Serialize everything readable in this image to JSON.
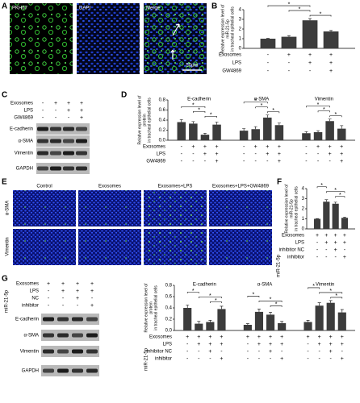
{
  "panel_a": {
    "label": "A",
    "images": [
      "PKH67",
      "DAPI",
      "Merge"
    ],
    "scale_bar": "50μm"
  },
  "panel_c": {
    "label": "C",
    "conditions": [
      {
        "name": "Exosomes",
        "marks": [
          "-",
          "+",
          "+",
          "+"
        ]
      },
      {
        "name": "LPS",
        "marks": [
          "-",
          "-",
          "+",
          "+"
        ]
      },
      {
        "name": "GW4869",
        "marks": [
          "-",
          "-",
          "-",
          "+"
        ]
      }
    ],
    "bands": [
      "E-cadherin",
      "α-SMA",
      "Vimentin",
      "GAPDH"
    ]
  },
  "panel_e": {
    "label": "E",
    "columns": [
      "Control",
      "Exosomes",
      "Exosomes+LPS",
      "Exosomes+LPS+GW4869"
    ],
    "rows": [
      "α-SMA",
      "Vimentin"
    ]
  },
  "panel_g": {
    "label": "G",
    "conditions": [
      {
        "name": "Exosomes",
        "marks": [
          "+",
          "+",
          "+",
          "+"
        ]
      },
      {
        "name": "LPS",
        "marks": [
          "-",
          "+",
          "+",
          "+"
        ]
      },
      {
        "name": "NC",
        "marks": [
          "-",
          "-",
          "+",
          "-"
        ]
      },
      {
        "name": "inhibitor",
        "marks": [
          "-",
          "-",
          "-",
          "+"
        ]
      }
    ],
    "condition_group_label": "miR-21-5p",
    "bands": [
      "E-cadherin",
      "α-SMA",
      "Vimentin",
      "GAPDH"
    ]
  },
  "chart_data": [
    {
      "type": "bar",
      "label": "B",
      "ylabel": [
        "Relative expression level of",
        "miR-21-5p",
        "in tracheal epithelial cells"
      ],
      "ylim": [
        0,
        4
      ],
      "yticks": [
        0,
        1,
        2,
        3,
        4
      ],
      "color": "#3c3c3c",
      "groups": [
        {
          "values": [
            1,
            1.2,
            2.9,
            1.75
          ],
          "errors": [
            0.03,
            0.12,
            0.18,
            0.1
          ],
          "significance": [
            {
              "pair": [
                0,
                2
              ],
              "label": "*"
            },
            {
              "pair": [
                1,
                2
              ],
              "label": "*"
            },
            {
              "pair": [
                2,
                3
              ],
              "label": "*"
            }
          ]
        }
      ],
      "conditions": [
        {
          "name": "Exosomes",
          "marks": [
            "-",
            "+",
            "+",
            "+"
          ]
        },
        {
          "name": "LPS",
          "marks": [
            "-",
            "-",
            "+",
            "+"
          ]
        },
        {
          "name": "GW4869",
          "marks": [
            "-",
            "-",
            "-",
            "+"
          ]
        }
      ]
    },
    {
      "type": "bar",
      "label": "D",
      "ylabel": [
        "Relative expression level of",
        "protein",
        "in tracheal epithelial cells"
      ],
      "ylim": [
        0,
        0.8
      ],
      "yticks": [
        {
          "value": 0,
          "label": "0.0"
        },
        0.2,
        0.4,
        0.6,
        0.8
      ],
      "color": "#3c3c3c",
      "groups": [
        {
          "name": "E-cadherin",
          "values": [
            0.36,
            0.33,
            0.11,
            0.31
          ],
          "errors": [
            0.05,
            0.04,
            0.03,
            0.05
          ],
          "significance": [
            {
              "pair": [
                0,
                2
              ],
              "label": "*"
            },
            {
              "pair": [
                1,
                2
              ],
              "label": "*"
            },
            {
              "pair": [
                2,
                3
              ],
              "label": "*"
            }
          ]
        },
        {
          "name": "α-SMA",
          "values": [
            0.19,
            0.22,
            0.45,
            0.3
          ],
          "errors": [
            0.04,
            0.05,
            0.05,
            0.04
          ],
          "significance": [
            {
              "pair": [
                0,
                2
              ],
              "label": "*"
            },
            {
              "pair": [
                1,
                2
              ],
              "label": "*"
            },
            {
              "pair": [
                2,
                3
              ],
              "label": "*"
            }
          ]
        },
        {
          "name": "Vimentin",
          "values": [
            0.14,
            0.16,
            0.38,
            0.23
          ],
          "errors": [
            0.03,
            0.03,
            0.04,
            0.06
          ],
          "significance": [
            {
              "pair": [
                0,
                2
              ],
              "label": "*"
            },
            {
              "pair": [
                1,
                2
              ],
              "label": "*"
            },
            {
              "pair": [
                2,
                3
              ],
              "label": "*"
            }
          ]
        }
      ],
      "conditions": [
        {
          "name": "Exosomes",
          "marks": [
            "-",
            "+",
            "+",
            "+"
          ]
        },
        {
          "name": "LPS",
          "marks": [
            "-",
            "-",
            "+",
            "+"
          ]
        },
        {
          "name": "GW4869",
          "marks": [
            "-",
            "-",
            "-",
            "+"
          ]
        }
      ]
    },
    {
      "type": "bar",
      "label": "F",
      "ylabel": [
        "Relative expression level of",
        "miR-21-5p",
        "in tracheal epithelial cells"
      ],
      "ylim": [
        0,
        4
      ],
      "yticks": [
        0,
        1,
        2,
        3,
        4
      ],
      "color": "#3c3c3c",
      "groups": [
        {
          "values": [
            1,
            2.7,
            2.5,
            1.1
          ],
          "errors": [
            0.03,
            0.2,
            0.15,
            0.08
          ],
          "significance": [
            {
              "pair": [
                0,
                1
              ],
              "label": "*"
            },
            {
              "pair": [
                1,
                3
              ],
              "label": "*"
            },
            {
              "pair": [
                2,
                3
              ],
              "label": "*"
            }
          ]
        }
      ],
      "conditions": [
        {
          "name": "Exosomes",
          "marks": [
            "+",
            "+",
            "+",
            "+"
          ]
        },
        {
          "name": "LPS",
          "marks": [
            "-",
            "+",
            "+",
            "+"
          ]
        },
        {
          "name": "inhibitor NC",
          "marks": [
            "-",
            "-",
            "+",
            "-"
          ]
        },
        {
          "name": "inhibitor",
          "marks": [
            "-",
            "-",
            "-",
            "+"
          ]
        }
      ],
      "condition_group_label": "miR-21-5p"
    },
    {
      "type": "bar",
      "ylabel": [
        "Relative expression level of",
        "protein",
        "in tracheal epithelial cells"
      ],
      "ylim": [
        0,
        0.8
      ],
      "yticks": [
        {
          "value": 0,
          "label": "0.0"
        },
        0.2,
        0.4,
        0.6,
        0.8
      ],
      "color": "#3c3c3c",
      "groups": [
        {
          "name": "E-cadherin",
          "values": [
            0.4,
            0.12,
            0.15,
            0.38
          ],
          "errors": [
            0.05,
            0.04,
            0.03,
            0.05
          ],
          "significance": [
            {
              "pair": [
                0,
                1
              ],
              "label": "*"
            },
            {
              "pair": [
                1,
                3
              ],
              "label": "*"
            },
            {
              "pair": [
                2,
                3
              ],
              "label": "*"
            }
          ]
        },
        {
          "name": "α-SMA",
          "values": [
            0.1,
            0.33,
            0.28,
            0.13
          ],
          "errors": [
            0.02,
            0.05,
            0.04,
            0.03
          ],
          "significance": [
            {
              "pair": [
                0,
                1
              ],
              "label": "*"
            },
            {
              "pair": [
                1,
                3
              ],
              "label": "*"
            },
            {
              "pair": [
                2,
                3
              ],
              "label": "*"
            }
          ]
        },
        {
          "name": "Vimentin",
          "values": [
            0.15,
            0.44,
            0.49,
            0.32
          ],
          "errors": [
            0.03,
            0.05,
            0.04,
            0.05
          ],
          "significance": [
            {
              "pair": [
                0,
                1
              ],
              "label": "*"
            },
            {
              "pair": [
                1,
                3
              ],
              "label": "*"
            },
            {
              "pair": [
                2,
                3
              ],
              "label": "*"
            }
          ]
        }
      ],
      "conditions": [
        {
          "name": "Exosomes",
          "marks": [
            "+",
            "+",
            "+",
            "+"
          ]
        },
        {
          "name": "LPS",
          "marks": [
            "-",
            "+",
            "+",
            "+"
          ]
        },
        {
          "name": "inhibitor NC",
          "marks": [
            "-",
            "-",
            "+",
            "-"
          ]
        },
        {
          "name": "inhibitor",
          "marks": [
            "-",
            "-",
            "-",
            "+"
          ]
        }
      ],
      "condition_group_label": "miR-21-5p"
    }
  ]
}
